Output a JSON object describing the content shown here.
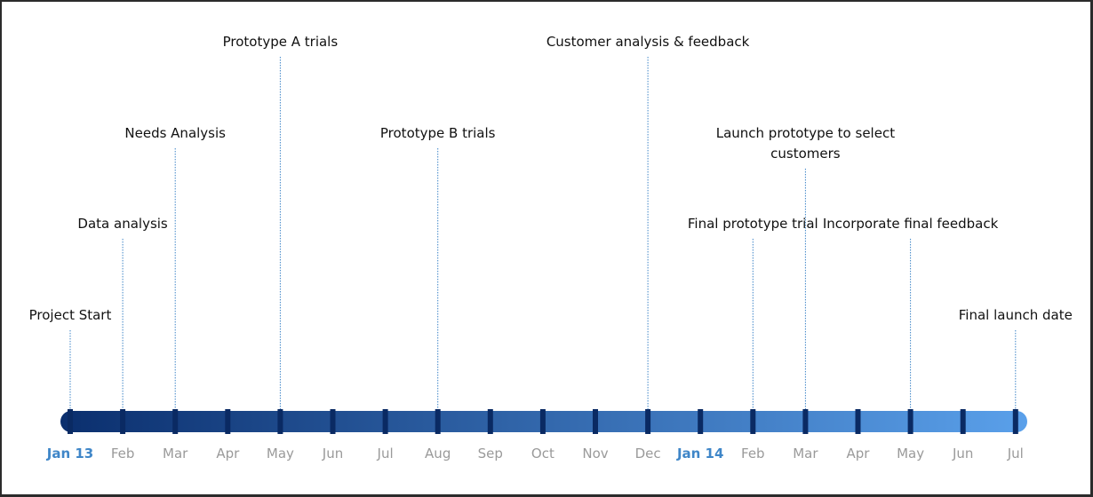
{
  "timeline": {
    "months": [
      {
        "label": "Jan 13",
        "year_start": true
      },
      {
        "label": "Feb"
      },
      {
        "label": "Mar"
      },
      {
        "label": "Apr"
      },
      {
        "label": "May"
      },
      {
        "label": "Jun"
      },
      {
        "label": "Jul"
      },
      {
        "label": "Aug"
      },
      {
        "label": "Sep"
      },
      {
        "label": "Oct"
      },
      {
        "label": "Nov"
      },
      {
        "label": "Dec"
      },
      {
        "label": "Jan 14",
        "year_start": true
      },
      {
        "label": "Feb"
      },
      {
        "label": "Mar"
      },
      {
        "label": "Apr"
      },
      {
        "label": "May"
      },
      {
        "label": "Jun"
      },
      {
        "label": "Jul"
      }
    ],
    "milestones": [
      {
        "lines": [
          "Project Start"
        ],
        "month": 0,
        "tier": 1
      },
      {
        "lines": [
          "Data analysis"
        ],
        "month": 1,
        "tier": 2
      },
      {
        "lines": [
          "Needs  Analysis"
        ],
        "month": 2,
        "tier": 3
      },
      {
        "lines": [
          "Prototype A trials"
        ],
        "month": 4,
        "tier": 4
      },
      {
        "lines": [
          "Prototype B trials"
        ],
        "month": 7,
        "tier": 3
      },
      {
        "lines": [
          "Customer analysis & feedback"
        ],
        "month": 11,
        "tier": 4
      },
      {
        "lines": [
          "Final prototype trial"
        ],
        "month": 13,
        "tier": 2
      },
      {
        "lines": [
          "Launch prototype to select",
          "customers"
        ],
        "month": 14,
        "tier": 3
      },
      {
        "lines": [
          "Incorporate final feedback"
        ],
        "month": 16,
        "tier": 2
      },
      {
        "lines": [
          "Final launch date"
        ],
        "month": 18,
        "tier": 1
      }
    ],
    "colors": {
      "bar_dark": "#0b2f6e",
      "bar_light": "#5aa0ea",
      "tick": "#0a2a63",
      "connector": "#3f86c8",
      "year_label": "#3f86c8",
      "month_label": "#9a9a9a",
      "event_text": "#111111"
    }
  }
}
